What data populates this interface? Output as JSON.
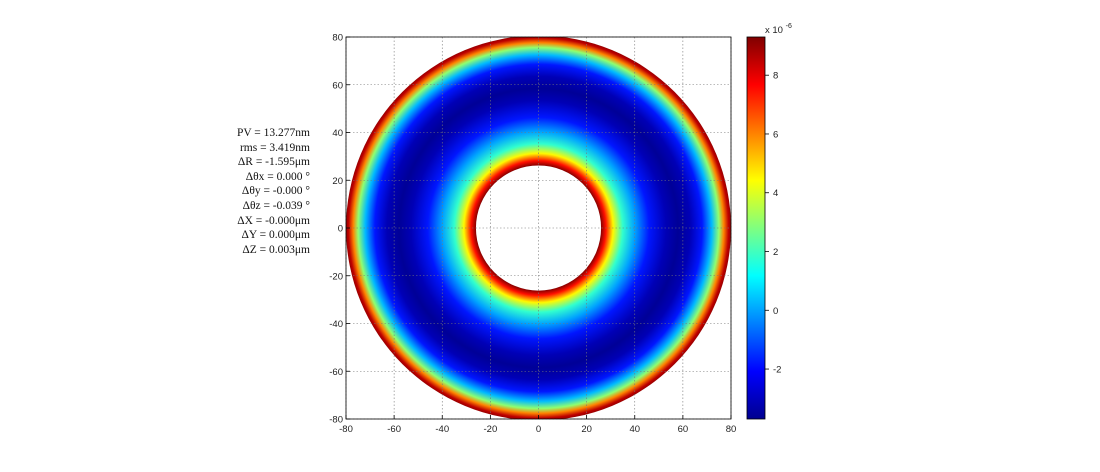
{
  "stats": [
    "PV = 13.277nm",
    "rms = 3.419nm",
    "ΔR = -1.595μm",
    "Δθx = 0.000 °",
    "Δθy = -0.000 °",
    "Δθz = -0.039 °",
    "ΔX = -0.000μm",
    "ΔY = 0.000μm",
    "ΔZ = 0.003μm"
  ],
  "chart_data": {
    "type": "heatmap",
    "title": "",
    "xlabel": "",
    "ylabel": "",
    "xlim": [
      -80,
      80
    ],
    "ylim": [
      -80,
      80
    ],
    "x_ticks": [
      -80,
      -60,
      -40,
      -20,
      0,
      20,
      40,
      60,
      80
    ],
    "y_ticks": [
      80,
      60,
      40,
      20,
      0,
      -20,
      -40,
      -60,
      -80
    ],
    "x_tick_labels": [
      "-80",
      "-60",
      "-40",
      "-20",
      "0",
      "20",
      "40",
      "60",
      "80"
    ],
    "y_tick_labels": [
      "80",
      "60",
      "40",
      "20",
      "0",
      "-20",
      "-40",
      "-60",
      "-80"
    ],
    "grid": true,
    "shape": "annulus",
    "outer_radius": 80,
    "inner_radius": 26,
    "radial_profile": [
      {
        "r": 26,
        "value": 9.2
      },
      {
        "r": 28,
        "value": 7.5
      },
      {
        "r": 31,
        "value": 4.5
      },
      {
        "r": 35,
        "value": 1.8
      },
      {
        "r": 40,
        "value": 0.0
      },
      {
        "r": 46,
        "value": -1.8
      },
      {
        "r": 53,
        "value": -3.0
      },
      {
        "r": 58,
        "value": -3.4
      },
      {
        "r": 63,
        "value": -3.0
      },
      {
        "r": 68,
        "value": -1.8
      },
      {
        "r": 72,
        "value": 0.3
      },
      {
        "r": 75,
        "value": 3.0
      },
      {
        "r": 77,
        "value": 6.0
      },
      {
        "r": 79,
        "value": 8.5
      },
      {
        "r": 80,
        "value": 9.0
      }
    ],
    "colorbar": {
      "colormap": "jet",
      "range": [
        -3.7,
        9.3
      ],
      "ticks": [
        -2,
        0,
        2,
        4,
        6,
        8
      ],
      "tick_labels": [
        "-2",
        "0",
        "2",
        "4",
        "6",
        "8"
      ],
      "scale_label": "x 10",
      "scale_exponent": "-6"
    }
  }
}
